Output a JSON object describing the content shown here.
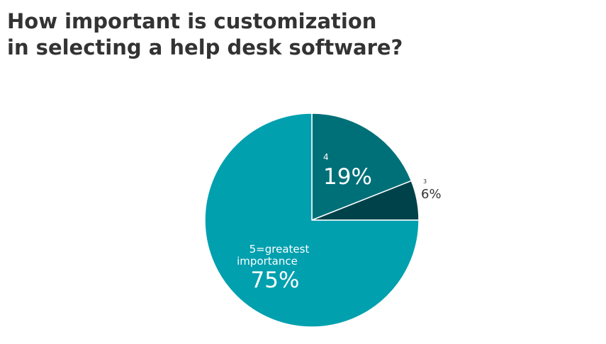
{
  "chart_data": {
    "type": "pie",
    "title_lines": [
      "How important is customization",
      "in selecting a help desk software?"
    ],
    "slices": [
      {
        "category": "4",
        "value": 19,
        "value_label": "19%",
        "color": "#007078"
      },
      {
        "category": "3",
        "value": 6,
        "value_label": "6%",
        "color": "#00424a"
      },
      {
        "category_lines": [
          "5=greatest",
          "importance"
        ],
        "value": 75,
        "value_label": "75%",
        "color": "#00a0af"
      }
    ],
    "start_angle": "12 o'clock",
    "direction": "clockwise"
  }
}
